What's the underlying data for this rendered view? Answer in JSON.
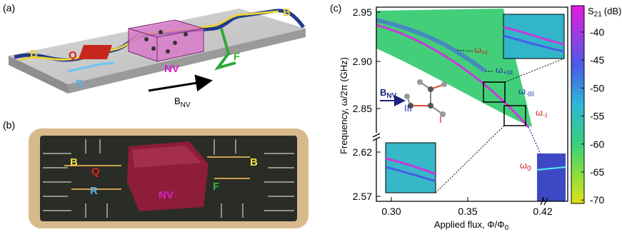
{
  "panel_a": {
    "label": "(a)",
    "labels": {
      "b_left": "B",
      "b_right": "B",
      "q": "Q",
      "nv": "NV",
      "f": "F",
      "r": "R"
    },
    "field": {
      "main": "B",
      "sub": "NV"
    }
  },
  "panel_b": {
    "label": "(b)",
    "labels": {
      "b_left": "B",
      "b_right": "B",
      "q": "Q",
      "r": "R",
      "nv": "NV",
      "f": "F"
    }
  },
  "panel_c": {
    "label": "(c)",
    "y_axis_label": "Frequency, ω/2π (GHz)",
    "x_axis_label": {
      "main": "Applied flux, Φ/Φ",
      "sub": "0"
    },
    "y_ticks": [
      "2.95",
      "2.90",
      "2.85",
      "2.62",
      "2.57"
    ],
    "x_ticks": [
      "0.30",
      "0.35",
      "0.42"
    ],
    "colorbar": {
      "title": {
        "main": "S",
        "sub": "21",
        "unit": "(dB)"
      },
      "ticks": [
        "-40",
        "-45",
        "-50",
        "-55",
        "-60",
        "-65",
        "-70"
      ]
    },
    "annotations": {
      "w_plus_i": {
        "main": "ω",
        "sub": "+I"
      },
      "w_plus_iii": {
        "main": "ω",
        "sub": "+III"
      },
      "w_minus_iii": {
        "main": "ω",
        "sub": "-III"
      },
      "w_minus_i": {
        "main": "ω",
        "sub": "-I"
      },
      "w_zero": {
        "main": "ω",
        "sub": "0"
      }
    },
    "field": {
      "main": "B",
      "sub": "NV"
    },
    "inset_labels": {
      "iii": "III",
      "i": "I"
    }
  }
}
